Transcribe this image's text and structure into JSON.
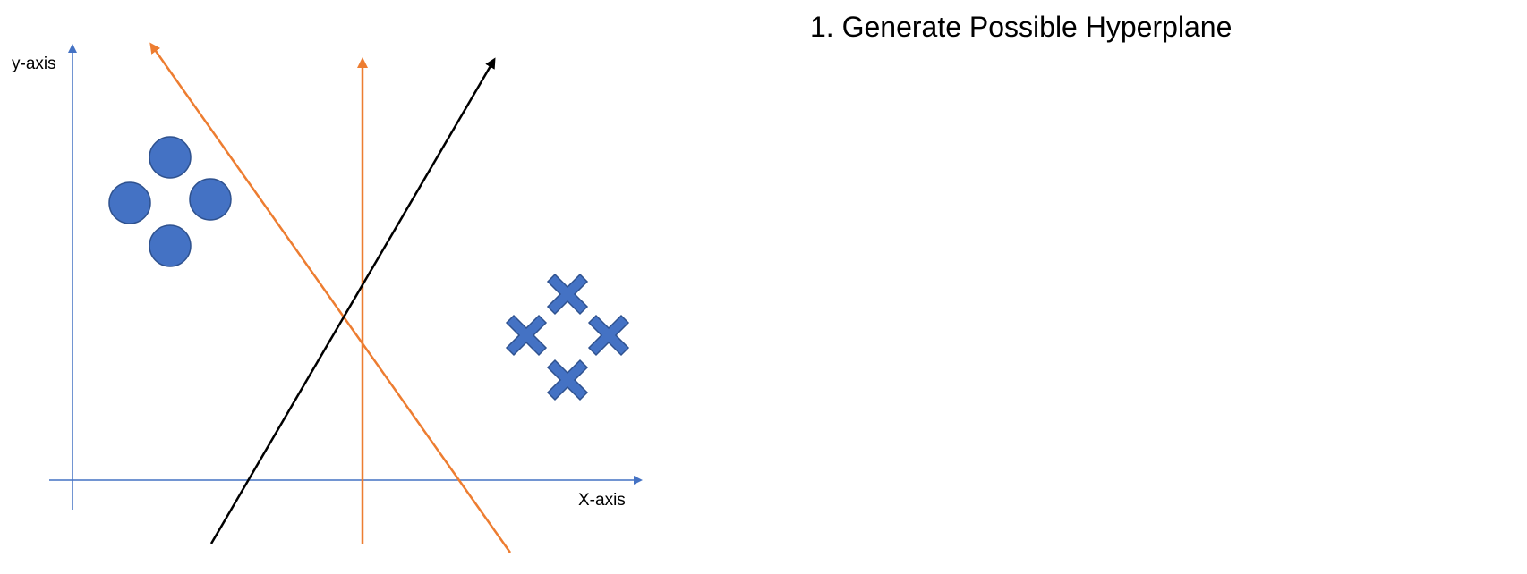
{
  "heading": "1. Generate Possible Hyperplane",
  "axes": {
    "y_label": "y-axis",
    "x_label": "X-axis",
    "color": "#4472C4"
  },
  "colors": {
    "marker_fill": "#4472C4",
    "marker_stroke": "#2F528F",
    "orange_line": "#ED7D31",
    "black_line": "#000000"
  },
  "markers": {
    "circle_class_count": 4,
    "cross_class_count": 4
  },
  "hyperplanes": [
    {
      "name": "orange-diagonal-line",
      "color": "orange"
    },
    {
      "name": "orange-vertical-line",
      "color": "orange"
    },
    {
      "name": "black-diagonal-line",
      "color": "black"
    }
  ]
}
